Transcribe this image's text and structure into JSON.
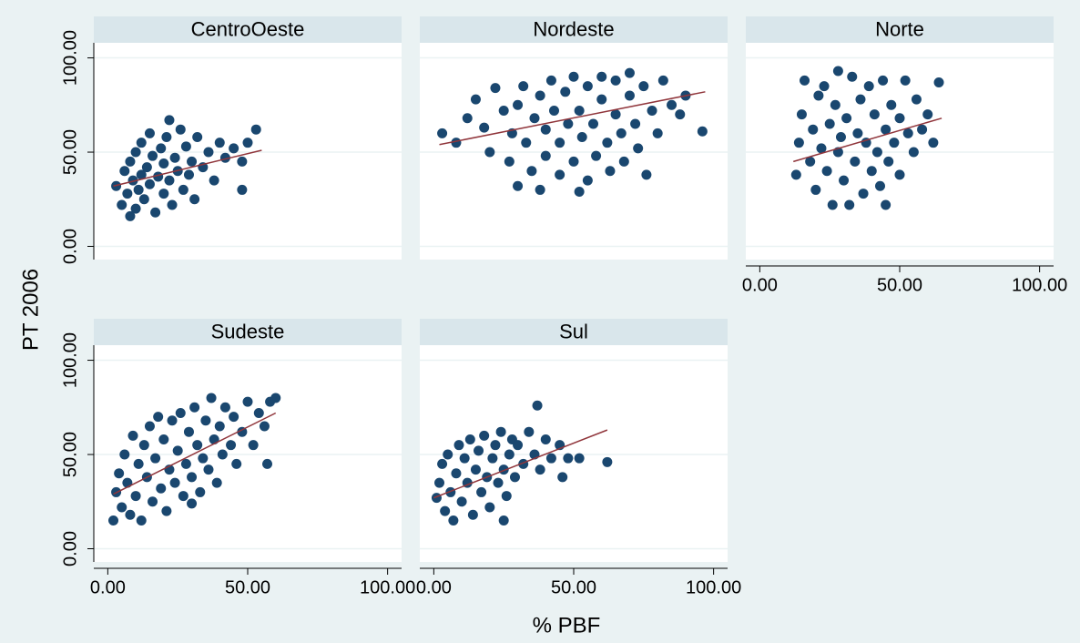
{
  "axes": {
    "xlabel": "% PBF",
    "ylabel": "PT 2006",
    "xlim": [
      -5,
      105
    ],
    "ylim": [
      -7,
      108
    ],
    "xticks": [
      {
        "value": 0,
        "label": "0.00"
      },
      {
        "value": 50,
        "label": "50.00"
      },
      {
        "value": 100,
        "label": "100.00"
      }
    ],
    "yticks": [
      {
        "value": 0,
        "label": "0.00"
      },
      {
        "value": 50,
        "label": "50.00"
      },
      {
        "value": 100,
        "label": "100.00"
      }
    ],
    "grid": true
  },
  "chart_data": [
    {
      "type": "scatter",
      "title": "CentroOeste",
      "color": "#1a476f",
      "x": [
        3,
        5,
        6,
        7,
        8,
        9,
        10,
        10,
        11,
        12,
        12,
        13,
        14,
        15,
        15,
        16,
        17,
        18,
        19,
        20,
        20,
        21,
        22,
        23,
        24,
        25,
        26,
        27,
        28,
        29,
        30,
        31,
        32,
        34,
        36,
        38,
        40,
        42,
        45,
        48,
        50,
        53,
        48,
        8,
        22
      ],
      "y": [
        32,
        22,
        40,
        28,
        45,
        35,
        20,
        50,
        30,
        38,
        55,
        25,
        42,
        33,
        60,
        48,
        18,
        37,
        52,
        28,
        44,
        58,
        35,
        22,
        47,
        40,
        62,
        30,
        53,
        38,
        45,
        25,
        58,
        42,
        50,
        35,
        55,
        47,
        52,
        45,
        55,
        62,
        30,
        16,
        67
      ],
      "fit": {
        "x": [
          2,
          55
        ],
        "y": [
          32,
          51
        ],
        "color": "#90353b"
      }
    },
    {
      "type": "scatter",
      "title": "Nordeste",
      "color": "#1a476f",
      "x": [
        3,
        8,
        12,
        15,
        18,
        20,
        22,
        25,
        27,
        28,
        30,
        32,
        33,
        35,
        36,
        38,
        38,
        40,
        40,
        42,
        43,
        45,
        45,
        47,
        48,
        50,
        50,
        52,
        53,
        55,
        55,
        57,
        58,
        60,
        60,
        62,
        63,
        65,
        65,
        67,
        68,
        70,
        70,
        72,
        73,
        75,
        76,
        78,
        80,
        82,
        85,
        88,
        90,
        96,
        52,
        30
      ],
      "y": [
        60,
        55,
        68,
        78,
        63,
        50,
        84,
        72,
        45,
        60,
        75,
        85,
        55,
        40,
        68,
        30,
        80,
        62,
        48,
        88,
        72,
        55,
        38,
        82,
        65,
        45,
        90,
        72,
        58,
        35,
        85,
        65,
        48,
        78,
        90,
        55,
        40,
        70,
        88,
        60,
        45,
        80,
        92,
        65,
        52,
        85,
        38,
        72,
        60,
        88,
        75,
        70,
        80,
        61,
        29,
        32
      ],
      "fit": {
        "x": [
          2,
          97
        ],
        "y": [
          54,
          82
        ],
        "color": "#90353b"
      }
    },
    {
      "type": "scatter",
      "title": "Norte",
      "color": "#1a476f",
      "x": [
        13,
        14,
        15,
        16,
        18,
        19,
        20,
        21,
        22,
        23,
        24,
        25,
        26,
        27,
        28,
        29,
        30,
        31,
        32,
        33,
        34,
        35,
        36,
        37,
        38,
        39,
        40,
        41,
        42,
        43,
        44,
        45,
        45,
        46,
        47,
        48,
        50,
        50,
        52,
        53,
        55,
        56,
        58,
        60,
        62,
        64,
        28
      ],
      "y": [
        38,
        55,
        70,
        88,
        45,
        62,
        30,
        80,
        52,
        85,
        40,
        65,
        22,
        75,
        50,
        58,
        35,
        68,
        22,
        90,
        45,
        60,
        78,
        28,
        55,
        85,
        40,
        70,
        50,
        32,
        88,
        62,
        22,
        45,
        75,
        55,
        68,
        38,
        88,
        60,
        50,
        78,
        62,
        70,
        55,
        87,
        93
      ],
      "fit": {
        "x": [
          12,
          65
        ],
        "y": [
          45,
          68
        ],
        "color": "#90353b"
      }
    },
    {
      "type": "scatter",
      "title": "Sudeste",
      "color": "#1a476f",
      "x": [
        2,
        3,
        4,
        5,
        6,
        7,
        8,
        9,
        10,
        11,
        12,
        13,
        14,
        15,
        16,
        17,
        18,
        19,
        20,
        21,
        22,
        23,
        24,
        25,
        26,
        27,
        28,
        29,
        30,
        31,
        32,
        33,
        34,
        35,
        36,
        37,
        38,
        39,
        40,
        41,
        42,
        44,
        45,
        46,
        48,
        50,
        52,
        54,
        56,
        58,
        60,
        57,
        30
      ],
      "y": [
        15,
        30,
        40,
        22,
        50,
        35,
        18,
        60,
        28,
        45,
        15,
        55,
        38,
        65,
        25,
        48,
        70,
        32,
        58,
        20,
        42,
        68,
        35,
        52,
        72,
        28,
        45,
        62,
        38,
        75,
        55,
        30,
        48,
        68,
        42,
        80,
        58,
        35,
        65,
        50,
        75,
        55,
        70,
        45,
        62,
        78,
        55,
        72,
        65,
        78,
        80,
        45,
        24
      ],
      "fit": {
        "x": [
          2,
          60
        ],
        "y": [
          29,
          72
        ],
        "color": "#90353b"
      }
    },
    {
      "type": "scatter",
      "title": "Sul",
      "color": "#1a476f",
      "x": [
        1,
        2,
        3,
        4,
        5,
        6,
        7,
        8,
        9,
        10,
        11,
        12,
        13,
        14,
        15,
        16,
        17,
        18,
        19,
        20,
        21,
        22,
        23,
        24,
        25,
        26,
        27,
        28,
        29,
        30,
        32,
        34,
        36,
        37,
        38,
        40,
        42,
        45,
        46,
        48,
        52,
        62,
        25
      ],
      "y": [
        27,
        35,
        45,
        20,
        50,
        30,
        15,
        40,
        55,
        25,
        48,
        35,
        58,
        18,
        42,
        52,
        30,
        60,
        38,
        22,
        48,
        55,
        35,
        62,
        42,
        28,
        50,
        58,
        38,
        55,
        45,
        62,
        50,
        76,
        42,
        58,
        48,
        55,
        38,
        48,
        48,
        46,
        15
      ],
      "fit": {
        "x": [
          0,
          62
        ],
        "y": [
          27,
          63
        ],
        "color": "#90353b"
      }
    }
  ]
}
